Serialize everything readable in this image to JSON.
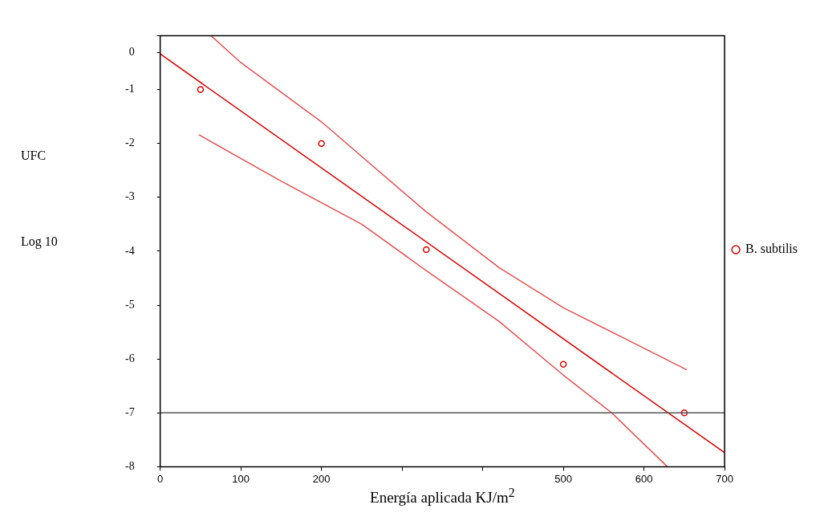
{
  "chart_data": {
    "type": "scatter",
    "xlabel": "Energía aplicada KJ/m$^{2}$",
    "ylabel": "UFC\nLog 10",
    "xlim": [
      0,
      700
    ],
    "ylim": [
      -8,
      0
    ],
    "xticks": [
      0,
      100,
      200,
      {
        "value": 300,
        "label": null
      },
      {
        "value": 400,
        "label": null
      },
      500,
      600,
      700
    ],
    "yticks": [
      {
        "value": 0,
        "label": null
      },
      {
        "value": -0.31,
        "label": "0"
      },
      -1,
      -2,
      -3,
      -4,
      -5,
      -6,
      -7,
      -8
    ],
    "grid": false,
    "legend": "right",
    "ref_lines": [
      {
        "axis": "y",
        "value": -7,
        "color": "#555555"
      }
    ],
    "series": [
      {
        "name": "B. subtilis",
        "type": "scatter",
        "marker": "circle",
        "color": "#dd0000",
        "x": [
          50,
          200,
          330,
          500,
          650
        ],
        "values": [
          -1,
          -2,
          -3.97,
          -6.1,
          -7
        ]
      },
      {
        "type": "line",
        "marker": "none",
        "color": "#dd0000",
        "x": [
          0,
          700
        ],
        "values": [
          -0.34,
          -7.74
        ]
      },
      {
        "type": "line",
        "marker": "none",
        "color": "#e85050",
        "x": [
          63,
          100,
          200,
          330,
          420,
          500,
          580,
          653
        ],
        "values": [
          0,
          -0.5,
          -1.6,
          -3.27,
          -4.3,
          -5.05,
          -5.65,
          -6.2
        ]
      },
      {
        "type": "line",
        "marker": "none",
        "color": "#e85050",
        "x": [
          48,
          150,
          250,
          330,
          420,
          500,
          560,
          629
        ],
        "values": [
          -1.84,
          -2.7,
          -3.5,
          -4.36,
          -5.3,
          -6.3,
          -7,
          -8
        ]
      }
    ]
  }
}
